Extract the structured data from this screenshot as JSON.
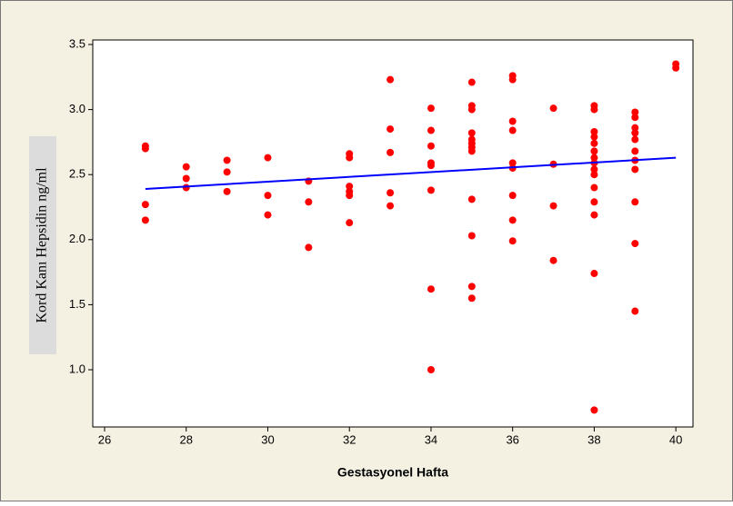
{
  "chart_data": {
    "type": "scatter",
    "xlabel": "Gestasyonel Hafta",
    "ylabel": "Kord Kanı Hepsidin ng/ml",
    "xlim": [
      25.71,
      40.42
    ],
    "ylim": [
      0.56,
      3.535
    ],
    "xticks": [
      26,
      28,
      30,
      32,
      34,
      36,
      38,
      40
    ],
    "yticks": [
      {
        "value": 1.0,
        "label": "1.0"
      },
      1.5,
      {
        "value": 2.0,
        "label": "2.0"
      },
      2.5,
      {
        "value": 3.0,
        "label": "3.0"
      },
      3.5
    ],
    "color": "#ff0000",
    "x": [
      27,
      27,
      27,
      27,
      28,
      28,
      28,
      29,
      29,
      29,
      30,
      30,
      30,
      31,
      31,
      31,
      32,
      32,
      32,
      32,
      32,
      32,
      33,
      33,
      33,
      33,
      33,
      34,
      34,
      34,
      34,
      34,
      34,
      34,
      34,
      35,
      35,
      35,
      35,
      35,
      35,
      35,
      35,
      35,
      35,
      35,
      35,
      36,
      36,
      36,
      36,
      36,
      36,
      36,
      36,
      36,
      37,
      37,
      37,
      37,
      38,
      38,
      38,
      38,
      38,
      38,
      38,
      38,
      38,
      38,
      38,
      38,
      38,
      38,
      38,
      39,
      39,
      39,
      39,
      39,
      39,
      39,
      39,
      39,
      39,
      39,
      40,
      40
    ],
    "y": [
      2.72,
      2.7,
      2.27,
      2.15,
      2.56,
      2.47,
      2.4,
      2.61,
      2.52,
      2.37,
      2.63,
      2.34,
      2.19,
      2.45,
      2.29,
      1.94,
      2.66,
      2.63,
      2.41,
      2.37,
      2.34,
      2.13,
      3.23,
      2.85,
      2.67,
      2.36,
      2.26,
      3.01,
      2.84,
      2.72,
      2.59,
      2.57,
      2.38,
      1.62,
      1.0,
      3.21,
      3.03,
      3.0,
      2.82,
      2.77,
      2.74,
      2.71,
      2.68,
      2.31,
      2.03,
      1.64,
      1.55,
      3.26,
      3.23,
      2.91,
      2.84,
      2.59,
      2.55,
      2.34,
      2.15,
      1.99,
      3.01,
      2.58,
      2.26,
      1.84,
      3.03,
      3.0,
      2.83,
      2.79,
      2.74,
      2.68,
      2.63,
      2.59,
      2.54,
      2.5,
      2.4,
      2.29,
      2.19,
      1.74,
      0.69,
      2.98,
      2.94,
      2.86,
      2.82,
      2.77,
      2.68,
      2.61,
      2.54,
      2.29,
      1.97,
      1.45,
      3.35,
      3.32
    ],
    "fit": {
      "x": [
        27,
        40
      ],
      "y": [
        2.39,
        2.63
      ],
      "color": "#0000ff"
    }
  }
}
